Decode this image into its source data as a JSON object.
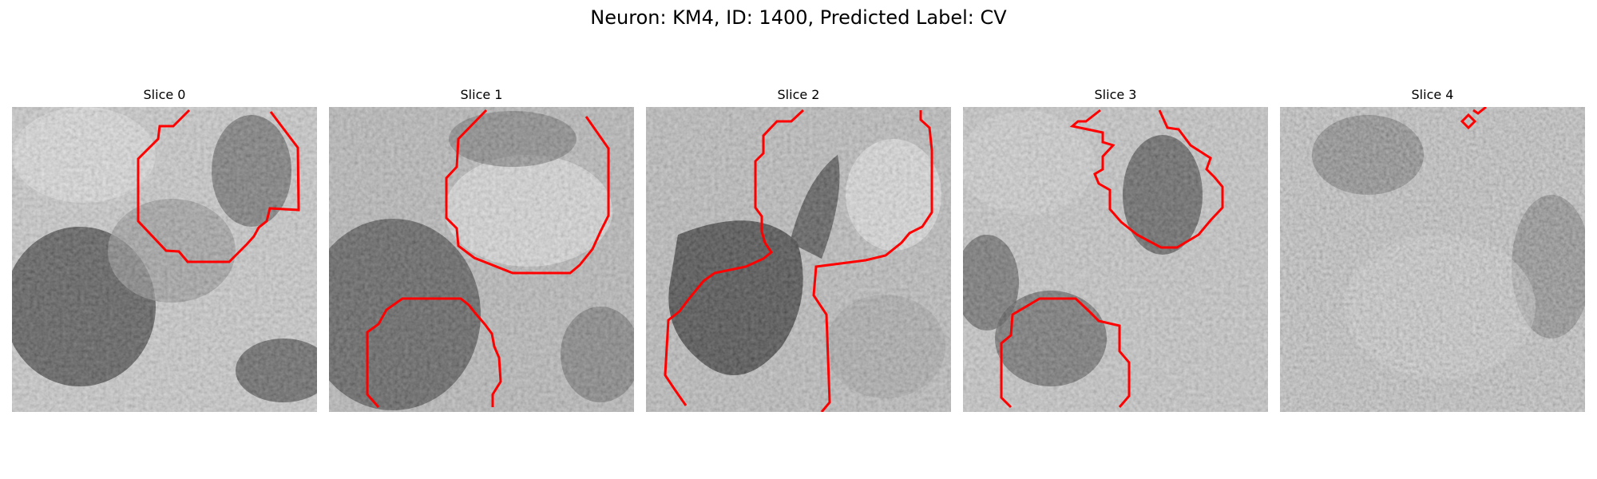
{
  "figure": {
    "title": "Neuron: KM4, ID: 1400, Predicted Label: CV"
  },
  "colors": {
    "contour": "#ff0000",
    "colormap": "gray",
    "background": "#ffffff"
  },
  "panels": [
    {
      "title": "Slice 0"
    },
    {
      "title": "Slice 1"
    },
    {
      "title": "Slice 2"
    },
    {
      "title": "Slice 3"
    },
    {
      "title": "Slice 4"
    }
  ]
}
